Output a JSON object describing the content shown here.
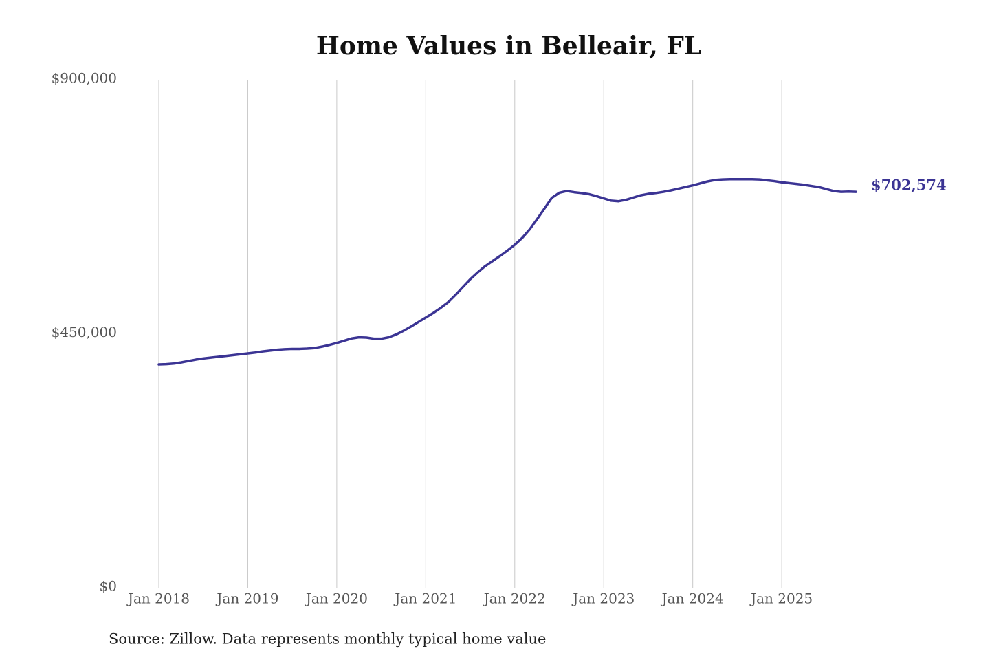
{
  "chart_data": {
    "type": "line",
    "title": "Home Values in Belleair, FL",
    "source": "Source: Zillow. Data represents monthly typical home value",
    "color": "#3b3494",
    "grid": "x",
    "x": [
      "2018-01",
      "2018-02",
      "2018-03",
      "2018-04",
      "2018-05",
      "2018-06",
      "2018-07",
      "2018-08",
      "2018-09",
      "2018-10",
      "2018-11",
      "2018-12",
      "2019-01",
      "2019-02",
      "2019-03",
      "2019-04",
      "2019-05",
      "2019-06",
      "2019-07",
      "2019-08",
      "2019-09",
      "2019-10",
      "2019-11",
      "2019-12",
      "2020-01",
      "2020-02",
      "2020-03",
      "2020-04",
      "2020-05",
      "2020-06",
      "2020-07",
      "2020-08",
      "2020-09",
      "2020-10",
      "2020-11",
      "2020-12",
      "2021-01",
      "2021-02",
      "2021-03",
      "2021-04",
      "2021-05",
      "2021-06",
      "2021-07",
      "2021-08",
      "2021-09",
      "2021-10",
      "2021-11",
      "2021-12",
      "2022-01",
      "2022-02",
      "2022-03",
      "2022-04",
      "2022-05",
      "2022-06",
      "2022-07",
      "2022-08",
      "2022-09",
      "2022-10",
      "2022-11",
      "2022-12",
      "2023-01",
      "2023-02",
      "2023-03",
      "2023-04",
      "2023-05",
      "2023-06",
      "2023-07",
      "2023-08",
      "2023-09",
      "2023-10",
      "2023-11",
      "2023-12",
      "2024-01",
      "2024-02",
      "2024-03",
      "2024-04",
      "2024-05",
      "2024-06",
      "2024-07",
      "2024-08",
      "2024-09",
      "2024-10",
      "2024-11",
      "2024-12",
      "2025-01",
      "2025-02",
      "2025-03",
      "2025-04",
      "2025-05",
      "2025-06",
      "2025-07",
      "2025-08",
      "2025-09",
      "2025-10",
      "2025-11"
    ],
    "values": [
      397000,
      397500,
      398500,
      400500,
      403000,
      405500,
      407500,
      409000,
      410500,
      412000,
      413500,
      415000,
      416500,
      418000,
      420000,
      421500,
      423000,
      424000,
      424500,
      424500,
      425000,
      426000,
      428500,
      431500,
      435000,
      439000,
      443000,
      445000,
      444500,
      442500,
      442500,
      445000,
      450000,
      456500,
      464000,
      472000,
      480000,
      488000,
      497000,
      507000,
      520000,
      534000,
      548000,
      560000,
      571000,
      580000,
      589000,
      598500,
      609000,
      621000,
      636000,
      654000,
      673000,
      692000,
      701000,
      704000,
      702000,
      700500,
      698500,
      695000,
      691000,
      687000,
      686000,
      688500,
      692500,
      696500,
      699000,
      700500,
      702500,
      705000,
      708000,
      711000,
      714000,
      717500,
      721000,
      723500,
      724500,
      725000,
      725000,
      725000,
      725000,
      724500,
      723000,
      721500,
      719500,
      718000,
      716500,
      715000,
      713000,
      711000,
      707500,
      704000,
      702500,
      703000,
      702574
    ],
    "annotations": [
      {
        "x": "2025-11",
        "value": 702574,
        "label": "$702,574"
      }
    ],
    "xlim": [
      "2018-01",
      "2025-11"
    ],
    "xticks": [
      {
        "value": "2018-01",
        "label": "Jan 2018"
      },
      {
        "value": "2019-01",
        "label": "Jan 2019"
      },
      {
        "value": "2020-01",
        "label": "Jan 2020"
      },
      {
        "value": "2021-01",
        "label": "Jan 2021"
      },
      {
        "value": "2022-01",
        "label": "Jan 2022"
      },
      {
        "value": "2023-01",
        "label": "Jan 2023"
      },
      {
        "value": "2024-01",
        "label": "Jan 2024"
      },
      {
        "value": "2025-01",
        "label": "Jan 2025"
      }
    ],
    "ylim": [
      0,
      900000
    ],
    "yticks": [
      {
        "value": 0,
        "label": "$0"
      },
      {
        "value": 450000,
        "label": "$450,000"
      },
      {
        "value": 900000,
        "label": "$900,000"
      }
    ]
  }
}
